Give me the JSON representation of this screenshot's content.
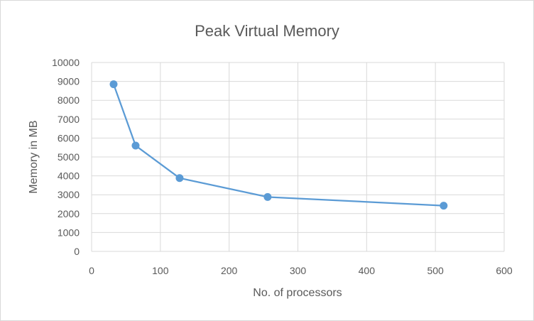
{
  "chart_data": {
    "type": "scatter",
    "title": "Peak Virtual Memory",
    "xlabel": "No. of processors",
    "ylabel": "Memory in MB",
    "xlim": [
      0,
      600
    ],
    "ylim": [
      0,
      10000
    ],
    "x_ticks": [
      0,
      100,
      200,
      300,
      400,
      500,
      600
    ],
    "y_ticks": [
      0,
      1000,
      2000,
      3000,
      4000,
      5000,
      6000,
      7000,
      8000,
      9000,
      10000
    ],
    "grid": true,
    "legend": "none",
    "series": [
      {
        "x": [
          32,
          64,
          128,
          256,
          512
        ],
        "y": [
          8850,
          5600,
          3880,
          2880,
          2420
        ],
        "color": "#5b9bd5",
        "style": "line-with-markers"
      }
    ]
  }
}
